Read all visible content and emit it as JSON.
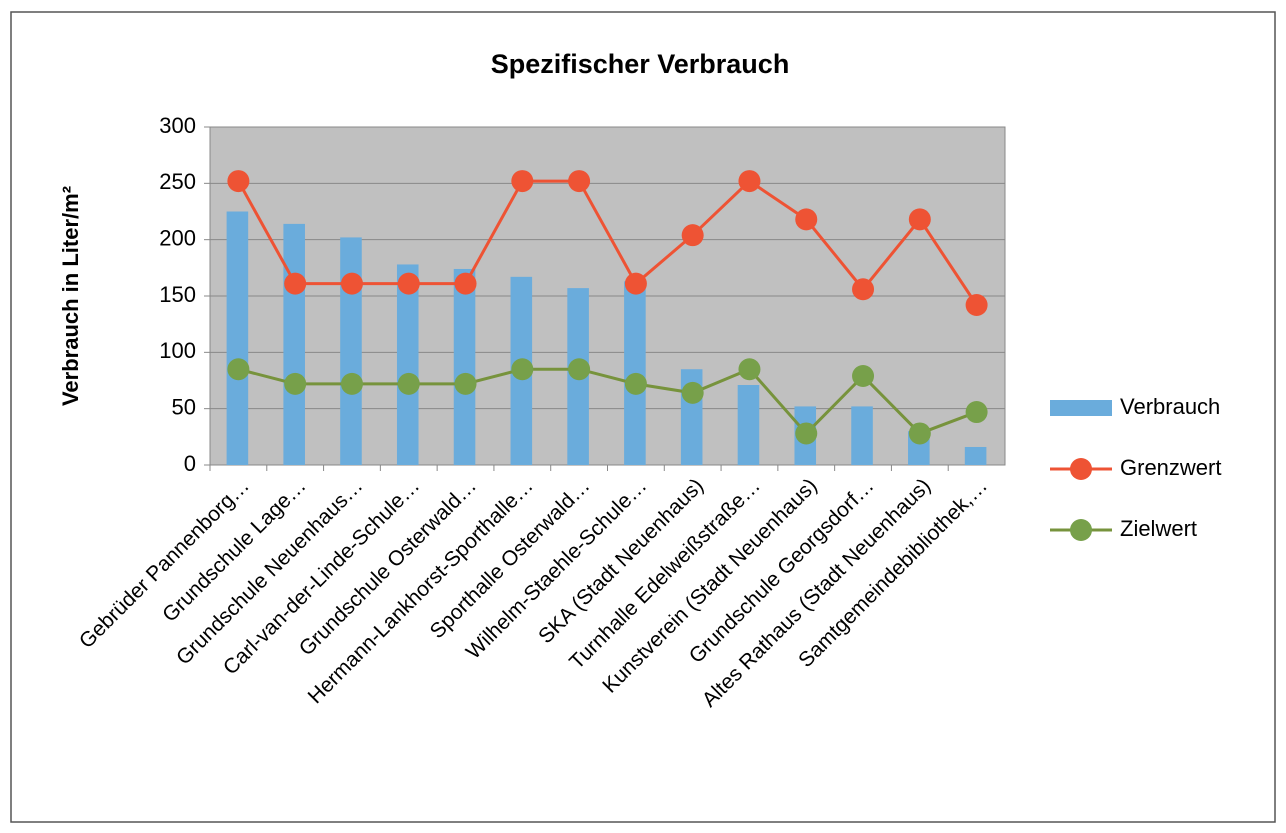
{
  "chart_data": {
    "type": "bar",
    "title": "Spezifischer Verbrauch",
    "y_label": "Verbrauch in Liter/m²",
    "categories": [
      "Gebrüder Pannenborg…",
      "Grundschule Lage…",
      "Grundschule Neuenhaus…",
      "Carl-van-der-Linde-Schule…",
      "Grundschule Osterwald…",
      "Hermann-Lankhorst-Sporthalle…",
      "Sporthalle Osterwald…",
      "Wilhelm-Staehle-Schule…",
      "SKA (Stadt Neuenhaus)",
      "Turnhalle Edelweißstraße…",
      "Kunstverein (Stadt Neuenhaus)",
      "Grundschule Georgsdorf…",
      "Altes Rathaus (Stadt Neuenhaus)",
      "Samtgemeindebibliothek,…"
    ],
    "series": [
      {
        "name": "Verbrauch",
        "type": "bar",
        "color": "#6aacdc",
        "values": [
          225,
          214,
          202,
          178,
          174,
          167,
          157,
          163,
          85,
          71,
          52,
          52,
          30,
          16
        ]
      },
      {
        "name": "Grenzwert",
        "type": "line",
        "color": "#ee5334",
        "values": [
          252,
          161,
          161,
          161,
          161,
          252,
          252,
          161,
          204,
          252,
          218,
          156,
          218,
          142
        ]
      },
      {
        "name": "Zielwert",
        "type": "line",
        "color": "#77933c",
        "values": [
          85,
          72,
          72,
          72,
          72,
          85,
          85,
          72,
          64,
          85,
          28,
          79,
          28,
          47
        ]
      }
    ],
    "ylim": [
      0,
      300
    ],
    "yticks": [
      0,
      50,
      100,
      150,
      200,
      250,
      300
    ],
    "grid": true,
    "legend": "right"
  }
}
